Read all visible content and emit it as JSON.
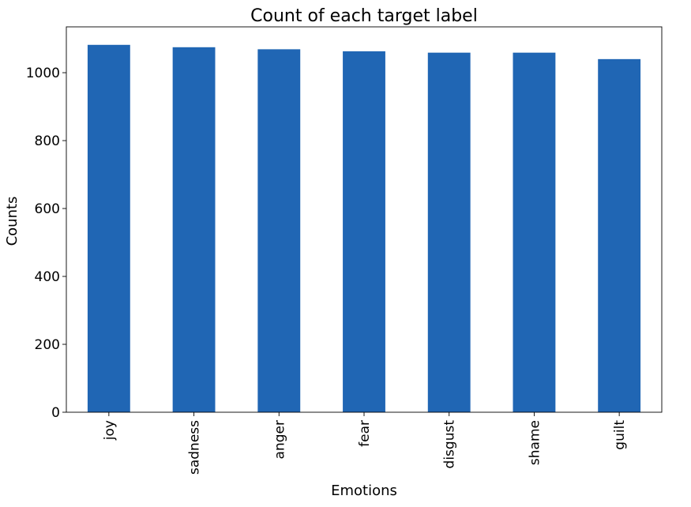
{
  "chart_data": {
    "type": "bar",
    "title": "Count of each target label",
    "xlabel": "Emotions",
    "ylabel": "Counts",
    "categories": [
      "joy",
      "sadness",
      "anger",
      "fear",
      "disgust",
      "shame",
      "guilt"
    ],
    "values": [
      1082,
      1075,
      1069,
      1063,
      1059,
      1059,
      1040
    ],
    "ylim": [
      0,
      1135
    ],
    "yticks": [
      0,
      200,
      400,
      600,
      800,
      1000
    ],
    "grid": false,
    "legend": "none",
    "bar_color": "#2066b4"
  }
}
